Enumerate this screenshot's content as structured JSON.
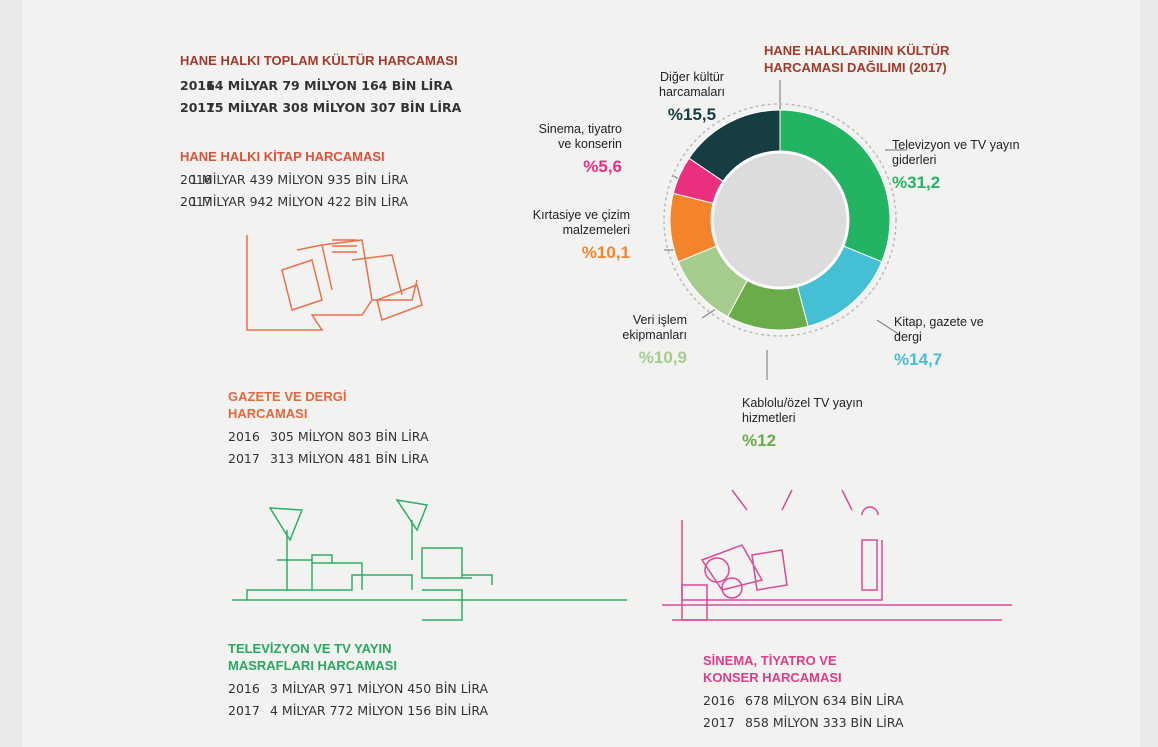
{
  "chart_data": {
    "type": "donut",
    "title": "HANE HALKLARININ KÜLTÜR HARCAMASI DAĞILIMI (2017)",
    "categories": [
      "Televizyon ve TV yayın giderleri",
      "Kitap, gazete ve dergi",
      "Kablolu/özel TV yayın hizmetleri",
      "Veri işlem ekipmanları",
      "Kırtasiye ve çizim malzemeleri",
      "Sinema, tiyatro ve konserin",
      "Diğer kültür harcamaları"
    ],
    "values": [
      31.2,
      14.7,
      12,
      10.9,
      10.1,
      5.6,
      15.5
    ],
    "value_labels": [
      "%31,2",
      "%14,7",
      "%12",
      "%10,9",
      "%10,1",
      "%5,6",
      "%15,5"
    ],
    "colors": [
      "#22b363",
      "#45bfd4",
      "#6aab4a",
      "#a5cc8c",
      "#f4842b",
      "#ea2f7f",
      "#163d42"
    ]
  },
  "sections": [
    {
      "title": "HANE HALKI TOPLAM KÜLTÜR HARCAMASI",
      "rows": [
        [
          "2016",
          "14 MİLYAR 79 MİLYON 164 BİN LİRA"
        ],
        [
          "2017",
          "15 MİLYAR 308 MİLYON 307 BİN LİRA"
        ]
      ]
    },
    {
      "title": "HANE HALKI KİTAP HARCAMASI",
      "rows": [
        [
          "2016",
          "1 MİLYAR 439 MİLYON 935 BİN LİRA"
        ],
        [
          "2017",
          "1 MİLYAR 942 MİLYON 422 BİN LİRA"
        ]
      ]
    },
    {
      "title": "GAZETE VE DERGİ HARCAMASI",
      "rows": [
        [
          "2016",
          "305 MİLYON 803 BİN LİRA"
        ],
        [
          "2017",
          "313 MİLYON 481 BİN LİRA"
        ]
      ]
    },
    {
      "title": "TELEVİZYON VE TV YAYIN MASRAFLARI HARCAMASI",
      "rows": [
        [
          "2016",
          "3 MİLYAR 971 MİLYON 450 BİN LİRA"
        ],
        [
          "2017",
          "4 MİLYAR 772 MİLYON 156 BİN LİRA"
        ]
      ]
    },
    {
      "title": "SİNEMA, TİYATRO VE KONSER HARCAMASI",
      "rows": [
        [
          "2016",
          "678 MİLYON 634 BİN LİRA"
        ],
        [
          "2017",
          "858 MİLYON 333 BİN LİRA"
        ]
      ]
    }
  ]
}
